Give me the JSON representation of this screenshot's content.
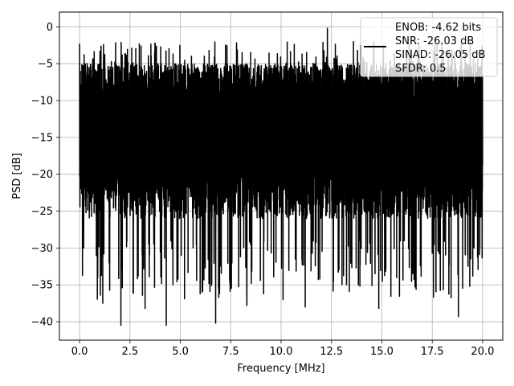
{
  "chart_data": {
    "type": "line",
    "title": "",
    "xlabel": "Frequency [MHz]",
    "ylabel": "PSD [dB]",
    "xlim": [
      -1.0,
      21.0
    ],
    "ylim": [
      -42.5,
      2.0
    ],
    "x_ticks": [
      0.0,
      2.5,
      5.0,
      7.5,
      10.0,
      12.5,
      15.0,
      17.5,
      20.0
    ],
    "x_tick_labels": [
      "0.0",
      "2.5",
      "5.0",
      "7.5",
      "10.0",
      "12.5",
      "15.0",
      "17.5",
      "20.0"
    ],
    "y_ticks": [
      0,
      -5,
      -10,
      -15,
      -20,
      -25,
      -30,
      -35,
      -40
    ],
    "y_tick_labels": [
      "0",
      "−5",
      "−10",
      "−15",
      "−20",
      "−25",
      "−30",
      "−35",
      "−40"
    ],
    "grid": true,
    "legend_position": "top-right",
    "series": [
      {
        "color": "#000000",
        "x_range": [
          0.0,
          20.0
        ],
        "peaks": [
          {
            "x": 0.0,
            "y": -2.3
          },
          {
            "x": 0.05,
            "y": -22.0
          },
          {
            "x": 0.12,
            "y": -6.5
          },
          {
            "x": 0.2,
            "y": -30.0
          },
          {
            "x": 0.9,
            "y": -34.0
          },
          {
            "x": 1.15,
            "y": -37.5
          },
          {
            "x": 2.05,
            "y": -40.5
          },
          {
            "x": 3.25,
            "y": -38.2
          },
          {
            "x": 4.3,
            "y": -40.5
          },
          {
            "x": 6.75,
            "y": -40.2
          },
          {
            "x": 8.3,
            "y": -37.8
          },
          {
            "x": 10.1,
            "y": -37.0
          },
          {
            "x": 11.2,
            "y": -38.0
          },
          {
            "x": 12.3,
            "y": -0.2
          },
          {
            "x": 14.85,
            "y": -38.2
          },
          {
            "x": 18.8,
            "y": -39.3
          }
        ],
        "typical_upper_db": -7,
        "typical_lower_db": -23,
        "max_db": -0.2,
        "min_db": -40.5
      }
    ]
  },
  "legend": {
    "entries": [
      "ENOB: -4.62 bits",
      "SNR: -26.03 dB",
      "SINAD: -26.05 dB",
      "SFDR: 0.5"
    ]
  },
  "colors": {
    "line": "#000000",
    "grid": "#b0b0b0",
    "axes": "#000000",
    "background": "#ffffff"
  }
}
